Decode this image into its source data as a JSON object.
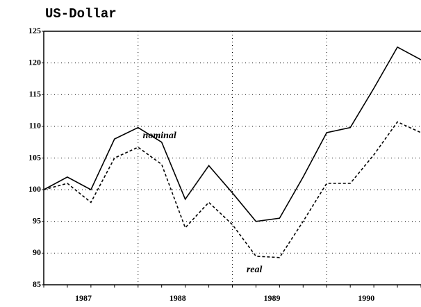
{
  "chart_data": {
    "type": "line",
    "title": "US-Dollar",
    "x": [
      1987.0,
      1987.25,
      1987.5,
      1987.75,
      1988.0,
      1988.25,
      1988.5,
      1988.75,
      1989.0,
      1989.25,
      1989.5,
      1989.75,
      1990.0,
      1990.25,
      1990.5,
      1990.75,
      1991.0
    ],
    "series": [
      {
        "name": "nominal",
        "color": "#000000",
        "dash": false,
        "values": [
          100,
          102,
          100,
          108,
          109.8,
          107.5,
          98.5,
          103.8,
          99.5,
          95,
          95.5,
          102,
          109,
          109.8,
          116,
          122.5,
          120.5
        ]
      },
      {
        "name": "real",
        "color": "#000000",
        "dash": true,
        "values": [
          100,
          101,
          98,
          105,
          106.7,
          104,
          94,
          98,
          94.5,
          89.5,
          89.3,
          95,
          101,
          101,
          105.5,
          110.7,
          109
        ]
      }
    ],
    "annotations": [
      {
        "text": "nominal",
        "x": 1988.05,
        "y": 108.5
      },
      {
        "text": "real",
        "x": 1989.15,
        "y": 87.3
      }
    ],
    "xlim": [
      1987,
      1991
    ],
    "xticks": [
      {
        "value": 1987.42,
        "label": "1987"
      },
      {
        "value": 1988.42,
        "label": "1988"
      },
      {
        "value": 1989.42,
        "label": "1989"
      },
      {
        "value": 1990.42,
        "label": "1990"
      }
    ],
    "xgrid": [
      1988,
      1989,
      1990
    ],
    "ylim": [
      85,
      125
    ],
    "yticks": [
      85,
      90,
      95,
      100,
      105,
      110,
      115,
      120,
      125
    ],
    "grid": true
  }
}
